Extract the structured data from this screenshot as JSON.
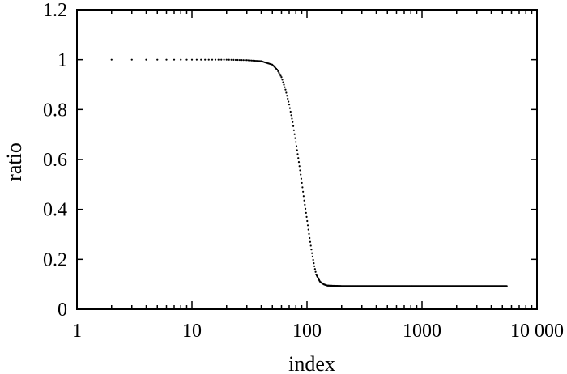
{
  "chart_data": {
    "type": "scatter",
    "title": "",
    "xlabel": "index",
    "ylabel": "ratio",
    "x_scale": "log",
    "xlim": [
      1,
      10000
    ],
    "ylim": [
      0,
      1.2
    ],
    "x_ticks": [
      {
        "value": 1,
        "label": "1"
      },
      {
        "value": 10,
        "label": "10"
      },
      {
        "value": 100,
        "label": "100"
      },
      {
        "value": 1000,
        "label": "1000"
      },
      {
        "value": 10000,
        "label": "10 000"
      }
    ],
    "y_ticks": [
      {
        "value": 0,
        "label": "0"
      },
      {
        "value": 0.2,
        "label": "0.2"
      },
      {
        "value": 0.4,
        "label": "0.4"
      },
      {
        "value": 0.6,
        "label": "0.6"
      },
      {
        "value": 0.8,
        "label": "0.8"
      },
      {
        "value": 1,
        "label": "1"
      },
      {
        "value": 1.2,
        "label": "1.2"
      }
    ],
    "grid": false,
    "legend": "none",
    "marker_color": "#000000",
    "series": [
      {
        "x_range": [
          2,
          5500
        ],
        "points": [
          [
            2,
            1.0
          ],
          [
            3,
            1.0
          ],
          [
            5,
            1.0
          ],
          [
            10,
            1.0
          ],
          [
            20,
            1.0
          ],
          [
            30,
            0.998
          ],
          [
            40,
            0.994
          ],
          [
            50,
            0.98
          ],
          [
            55,
            0.96
          ],
          [
            60,
            0.93
          ],
          [
            65,
            0.88
          ],
          [
            70,
            0.82
          ],
          [
            75,
            0.75
          ],
          [
            80,
            0.67
          ],
          [
            85,
            0.59
          ],
          [
            90,
            0.51
          ],
          [
            95,
            0.43
          ],
          [
            100,
            0.36
          ],
          [
            105,
            0.29
          ],
          [
            110,
            0.23
          ],
          [
            115,
            0.18
          ],
          [
            120,
            0.14
          ],
          [
            130,
            0.11
          ],
          [
            140,
            0.1
          ],
          [
            150,
            0.095
          ],
          [
            200,
            0.093
          ],
          [
            500,
            0.093
          ],
          [
            1000,
            0.093
          ],
          [
            5500,
            0.093
          ]
        ]
      }
    ]
  }
}
